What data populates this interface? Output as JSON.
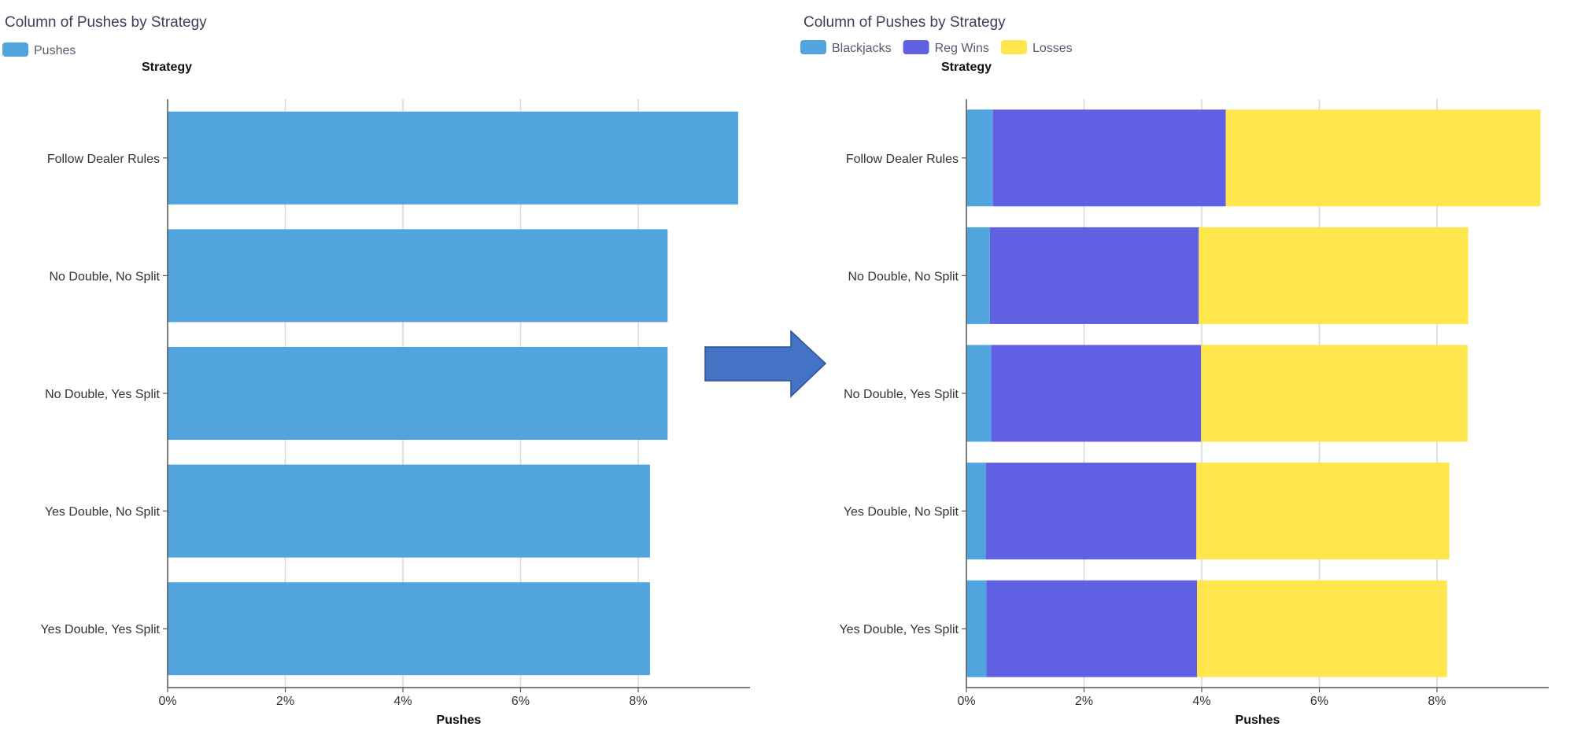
{
  "colors": {
    "pushes": "#51a4de",
    "blackjacks": "#51a4de",
    "reg_wins": "#6060e3",
    "losses": "#ffe64d",
    "arrow_fill": "#4472c4",
    "arrow_stroke": "#2f528f"
  },
  "arrow": {
    "icon": "right-arrow-icon"
  },
  "chart_data": [
    {
      "type": "bar",
      "orientation": "horizontal",
      "title": "Column of Pushes by Strategy",
      "legend": [
        {
          "label": "Pushes",
          "color": "#51a4de"
        }
      ],
      "ylabel": "Strategy",
      "xlabel": "Pushes",
      "categories": [
        "Follow Dealer Rules",
        "No Double, No Split",
        "No Double, Yes Split",
        "Yes Double, No Split",
        "Yes Double, Yes Split"
      ],
      "series": [
        {
          "name": "Pushes",
          "color": "#51a4de",
          "values": [
            9.7,
            8.5,
            8.5,
            8.2,
            8.2
          ]
        }
      ],
      "xticks": [
        "0%",
        "2%",
        "4%",
        "6%",
        "8%"
      ],
      "xtick_values": [
        0,
        2,
        4,
        6,
        8
      ],
      "xlim": [
        0,
        9.9
      ],
      "grid": true,
      "legend_position": "top-left"
    },
    {
      "type": "bar",
      "orientation": "horizontal",
      "stacked": true,
      "title": "Column of Pushes by Strategy",
      "legend": [
        {
          "label": "Blackjacks",
          "color": "#51a4de"
        },
        {
          "label": "Reg Wins",
          "color": "#6060e3"
        },
        {
          "label": "Losses",
          "color": "#ffe64d"
        }
      ],
      "ylabel": "Strategy",
      "xlabel": "Pushes",
      "categories": [
        "Follow Dealer Rules",
        "No Double, No Split",
        "No Double, Yes Split",
        "Yes Double, No Split",
        "Yes Double, Yes Split"
      ],
      "series": [
        {
          "name": "Blackjacks",
          "color": "#51a4de",
          "values": [
            0.45,
            0.4,
            0.42,
            0.33,
            0.34
          ]
        },
        {
          "name": "Reg Wins",
          "color": "#6060e3",
          "values": [
            3.96,
            3.55,
            3.57,
            3.58,
            3.58
          ]
        },
        {
          "name": "Losses",
          "color": "#ffe64d",
          "values": [
            5.35,
            4.58,
            4.53,
            4.3,
            4.25
          ]
        }
      ],
      "xticks": [
        "0%",
        "2%",
        "4%",
        "6%",
        "8%"
      ],
      "xtick_values": [
        0,
        2,
        4,
        6,
        8
      ],
      "xlim": [
        0,
        9.9
      ],
      "grid": true,
      "legend_position": "top-left"
    }
  ]
}
